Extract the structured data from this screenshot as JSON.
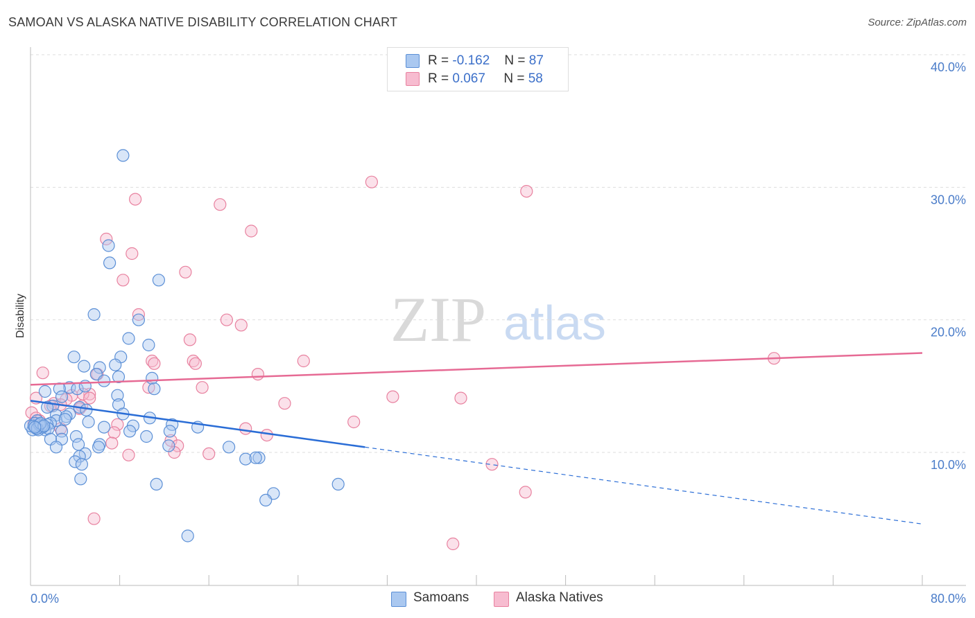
{
  "header": {
    "title": "SAMOAN VS ALASKA NATIVE DISABILITY CORRELATION CHART",
    "source": "Source: ZipAtlas.com"
  },
  "legend": {
    "samoans": {
      "r_label": "R =",
      "r_value": "-0.162",
      "n_label": "N =",
      "n_value": "87"
    },
    "alaska": {
      "r_label": "R =",
      "r_value": "0.067",
      "n_label": "N =",
      "n_value": "58"
    }
  },
  "bottom_legend": {
    "samoans": "Samoans",
    "alaska": "Alaska Natives"
  },
  "watermark": {
    "zip": "ZIP",
    "atlas": "atlas"
  },
  "colors": {
    "samoans_fill": "#aac8f0",
    "samoans_stroke": "#5b8fd6",
    "samoans_line": "#2a6dd6",
    "alaska_fill": "#f7bcd0",
    "alaska_stroke": "#e8819f",
    "alaska_line": "#e66a94",
    "tick_text": "#4a7cc9",
    "grid": "#dddddd"
  },
  "chart_data": {
    "type": "scatter",
    "title": "SAMOAN VS ALASKA NATIVE DISABILITY CORRELATION CHART",
    "xlabel": "",
    "ylabel": "Disability",
    "xlim": [
      0,
      80
    ],
    "ylim": [
      0,
      42
    ],
    "x_ticks": [
      "0.0%",
      "80.0%"
    ],
    "y_ticks": [
      {
        "value": 10,
        "label": "10.0%"
      },
      {
        "value": 20,
        "label": "20.0%"
      },
      {
        "value": 30,
        "label": "30.0%"
      },
      {
        "value": 40,
        "label": "40.0%"
      }
    ],
    "grid": "horizontal dashed",
    "series": [
      {
        "name": "Samoans",
        "r": -0.162,
        "n": 87,
        "trend": {
          "x0": 0,
          "y0": 13.9,
          "x1": 30,
          "y1": 10.4,
          "dashed_to_x": 80,
          "dashed_to_y": 4.6
        },
        "points": [
          [
            8.3,
            32.4
          ],
          [
            7.0,
            25.6
          ],
          [
            7.1,
            24.3
          ],
          [
            11.5,
            23.0
          ],
          [
            5.7,
            20.4
          ],
          [
            9.7,
            20.0
          ],
          [
            8.8,
            18.6
          ],
          [
            10.6,
            18.1
          ],
          [
            3.9,
            17.2
          ],
          [
            8.1,
            17.2
          ],
          [
            4.8,
            16.5
          ],
          [
            7.6,
            16.6
          ],
          [
            6.2,
            16.4
          ],
          [
            5.9,
            15.9
          ],
          [
            7.9,
            15.7
          ],
          [
            10.9,
            15.6
          ],
          [
            6.6,
            15.4
          ],
          [
            3.5,
            14.9
          ],
          [
            2.6,
            14.8
          ],
          [
            4.2,
            14.8
          ],
          [
            4.9,
            15.0
          ],
          [
            11.1,
            14.8
          ],
          [
            1.3,
            14.6
          ],
          [
            7.8,
            14.3
          ],
          [
            2.8,
            14.2
          ],
          [
            2.0,
            13.5
          ],
          [
            1.5,
            13.4
          ],
          [
            7.9,
            13.6
          ],
          [
            4.4,
            13.4
          ],
          [
            5.0,
            13.2
          ],
          [
            3.5,
            12.9
          ],
          [
            8.3,
            12.9
          ],
          [
            2.3,
            12.8
          ],
          [
            3.2,
            12.7
          ],
          [
            10.7,
            12.6
          ],
          [
            0.6,
            12.4
          ],
          [
            2.3,
            12.4
          ],
          [
            3.1,
            12.5
          ],
          [
            1.8,
            12.2
          ],
          [
            0.4,
            12.2
          ],
          [
            1.5,
            12.1
          ],
          [
            9.2,
            12.0
          ],
          [
            12.7,
            12.1
          ],
          [
            15.0,
            11.9
          ],
          [
            5.2,
            12.3
          ],
          [
            6.6,
            11.9
          ],
          [
            0.9,
            11.9
          ],
          [
            1.3,
            11.7
          ],
          [
            0.5,
            11.8
          ],
          [
            1.6,
            11.8
          ],
          [
            0.2,
            11.7
          ],
          [
            0.7,
            11.7
          ],
          [
            8.9,
            11.6
          ],
          [
            12.5,
            11.6
          ],
          [
            2.8,
            11.6
          ],
          [
            4.1,
            11.2
          ],
          [
            2.8,
            11.0
          ],
          [
            10.4,
            11.2
          ],
          [
            1.8,
            11.0
          ],
          [
            4.3,
            10.6
          ],
          [
            6.2,
            10.6
          ],
          [
            12.4,
            10.5
          ],
          [
            6.1,
            10.4
          ],
          [
            17.8,
            10.4
          ],
          [
            2.3,
            10.4
          ],
          [
            4.9,
            9.9
          ],
          [
            4.4,
            9.7
          ],
          [
            19.3,
            9.5
          ],
          [
            20.5,
            9.6
          ],
          [
            20.2,
            9.6
          ],
          [
            4.0,
            9.3
          ],
          [
            4.6,
            9.1
          ],
          [
            4.5,
            8.0
          ],
          [
            11.3,
            7.6
          ],
          [
            27.6,
            7.6
          ],
          [
            21.8,
            6.9
          ],
          [
            21.1,
            6.4
          ],
          [
            14.1,
            3.7
          ],
          [
            0.0,
            12.0
          ],
          [
            0.3,
            12.0
          ],
          [
            1.0,
            12.0
          ],
          [
            1.1,
            11.9
          ],
          [
            0.8,
            12.1
          ],
          [
            0.6,
            11.8
          ],
          [
            0.9,
            12.2
          ],
          [
            1.2,
            12.0
          ],
          [
            0.4,
            11.9
          ]
        ]
      },
      {
        "name": "Alaska Natives",
        "r": 0.067,
        "n": 58,
        "trend": {
          "x0": 0,
          "y0": 15.1,
          "x1": 80,
          "y1": 17.5
        },
        "points": [
          [
            30.6,
            30.4
          ],
          [
            44.5,
            29.7
          ],
          [
            9.4,
            29.1
          ],
          [
            17.0,
            28.7
          ],
          [
            19.8,
            26.7
          ],
          [
            6.8,
            26.1
          ],
          [
            9.1,
            25.0
          ],
          [
            13.9,
            23.6
          ],
          [
            8.3,
            23.0
          ],
          [
            9.7,
            20.4
          ],
          [
            17.6,
            20.0
          ],
          [
            18.9,
            19.6
          ],
          [
            14.3,
            18.5
          ],
          [
            24.5,
            16.9
          ],
          [
            10.9,
            16.9
          ],
          [
            11.1,
            16.7
          ],
          [
            14.6,
            16.9
          ],
          [
            14.8,
            16.7
          ],
          [
            66.7,
            17.1
          ],
          [
            1.1,
            16.0
          ],
          [
            6.0,
            15.9
          ],
          [
            20.4,
            15.9
          ],
          [
            10.6,
            14.9
          ],
          [
            15.4,
            14.9
          ],
          [
            5.3,
            14.4
          ],
          [
            3.7,
            14.3
          ],
          [
            4.7,
            14.4
          ],
          [
            0.5,
            14.1
          ],
          [
            5.3,
            14.1
          ],
          [
            32.5,
            14.2
          ],
          [
            38.6,
            14.1
          ],
          [
            3.2,
            14.0
          ],
          [
            2.1,
            13.7
          ],
          [
            4.6,
            13.5
          ],
          [
            22.8,
            13.7
          ],
          [
            1.8,
            13.5
          ],
          [
            2.7,
            13.6
          ],
          [
            4.4,
            13.3
          ],
          [
            29.0,
            12.3
          ],
          [
            7.8,
            12.1
          ],
          [
            19.3,
            11.8
          ],
          [
            21.2,
            11.3
          ],
          [
            7.5,
            11.5
          ],
          [
            2.7,
            11.8
          ],
          [
            12.6,
            10.9
          ],
          [
            7.3,
            10.7
          ],
          [
            13.2,
            10.5
          ],
          [
            12.9,
            10.0
          ],
          [
            8.8,
            9.8
          ],
          [
            16.0,
            9.9
          ],
          [
            41.4,
            9.1
          ],
          [
            44.4,
            7.0
          ],
          [
            5.7,
            5.0
          ],
          [
            37.9,
            3.1
          ],
          [
            0.1,
            13.0
          ],
          [
            0.5,
            12.6
          ],
          [
            0.8,
            12.4
          ],
          [
            0.3,
            12.2
          ]
        ]
      }
    ]
  }
}
